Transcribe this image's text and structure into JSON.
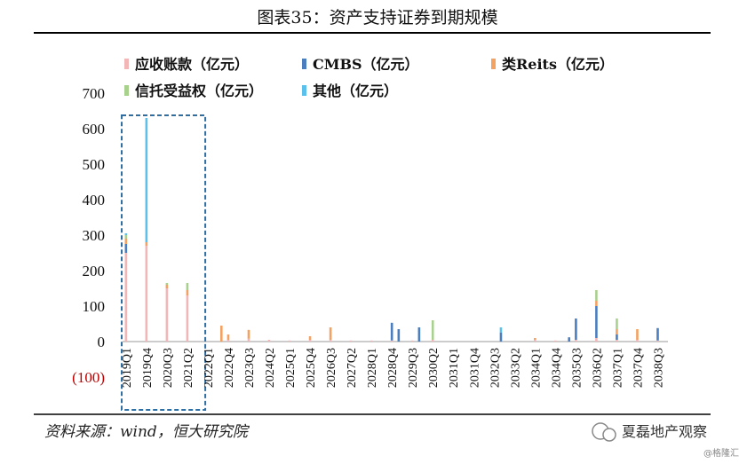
{
  "figure": {
    "title": "图表35：资产支持证券到期规模",
    "source": "资料来源：wind，恒大研究院",
    "watermark": "夏磊地产观察",
    "watermark_sub": "@格隆汇"
  },
  "chart_data": {
    "type": "bar",
    "stacked": true,
    "ylim": [
      -100,
      700
    ],
    "yticks": [
      700,
      600,
      500,
      400,
      300,
      200,
      100,
      0,
      -100
    ],
    "ytick_labels": [
      "700",
      "600",
      "500",
      "400",
      "300",
      "200",
      "100",
      "0",
      "(100)"
    ],
    "xtick_labels": [
      "2019Q1",
      "2019Q4",
      "2020Q3",
      "2021Q2",
      "2022Q1",
      "2022Q4",
      "2023Q3",
      "2024Q2",
      "2025Q1",
      "2025Q4",
      "2026Q3",
      "2027Q2",
      "2028Q1",
      "2028Q4",
      "2029Q3",
      "2030Q2",
      "2031Q1",
      "2031Q4",
      "2032Q3",
      "2033Q2",
      "2034Q1",
      "2034Q4",
      "2035Q3",
      "2036Q2",
      "2037Q1",
      "2037Q4",
      "2038Q3"
    ],
    "categories": [
      "2019Q1",
      "2019Q2",
      "2019Q3",
      "2019Q4",
      "2020Q1",
      "2020Q2",
      "2020Q3",
      "2020Q4",
      "2021Q1",
      "2021Q2",
      "2021Q3",
      "2021Q4",
      "2022Q1",
      "2022Q2",
      "2022Q3",
      "2022Q4",
      "2023Q1",
      "2023Q2",
      "2023Q3",
      "2023Q4",
      "2024Q1",
      "2024Q2",
      "2024Q3",
      "2024Q4",
      "2025Q1",
      "2025Q2",
      "2025Q3",
      "2025Q4",
      "2026Q1",
      "2026Q2",
      "2026Q3",
      "2026Q4",
      "2027Q1",
      "2027Q2",
      "2027Q3",
      "2027Q4",
      "2028Q1",
      "2028Q2",
      "2028Q3",
      "2028Q4",
      "2029Q1",
      "2029Q2",
      "2029Q3",
      "2029Q4",
      "2030Q1",
      "2030Q2",
      "2030Q3",
      "2030Q4",
      "2031Q1",
      "2031Q2",
      "2031Q3",
      "2031Q4",
      "2032Q1",
      "2032Q2",
      "2032Q3",
      "2032Q4",
      "2033Q1",
      "2033Q2",
      "2033Q3",
      "2033Q4",
      "2034Q1",
      "2034Q2",
      "2034Q3",
      "2034Q4",
      "2035Q1",
      "2035Q2",
      "2035Q3",
      "2035Q4",
      "2036Q1",
      "2036Q2",
      "2036Q3",
      "2036Q4",
      "2037Q1",
      "2037Q2",
      "2037Q3",
      "2037Q4",
      "2038Q1",
      "2038Q2",
      "2038Q3",
      "2038Q4"
    ],
    "series": [
      {
        "name": "应收账款（亿元）",
        "color": "#f2b6b6",
        "values": [
          250,
          0,
          0,
          270,
          0,
          0,
          150,
          0,
          0,
          130,
          0,
          0,
          0,
          0,
          0,
          5,
          0,
          0,
          8,
          0,
          0,
          5,
          0,
          0,
          3,
          0,
          0,
          5,
          0,
          0,
          5,
          0,
          0,
          3,
          0,
          0,
          3,
          0,
          0,
          3,
          0,
          0,
          3,
          0,
          0,
          5,
          0,
          0,
          0,
          0,
          0,
          0,
          0,
          0,
          0,
          0,
          0,
          0,
          0,
          0,
          5,
          0,
          0,
          3,
          0,
          0,
          5,
          0,
          0,
          10,
          0,
          0,
          5,
          0,
          0,
          5,
          0,
          0,
          3,
          0
        ]
      },
      {
        "name": "CMBS（亿元）",
        "color": "#4a7ebf",
        "values": [
          25,
          0,
          0,
          0,
          0,
          0,
          0,
          0,
          0,
          0,
          0,
          0,
          0,
          0,
          0,
          0,
          0,
          0,
          0,
          0,
          0,
          0,
          0,
          0,
          0,
          0,
          0,
          0,
          0,
          0,
          0,
          0,
          0,
          0,
          0,
          0,
          0,
          0,
          0,
          50,
          35,
          0,
          0,
          40,
          0,
          0,
          0,
          0,
          0,
          0,
          0,
          0,
          0,
          0,
          0,
          25,
          0,
          0,
          0,
          0,
          0,
          0,
          0,
          0,
          0,
          12,
          60,
          0,
          0,
          90,
          0,
          0,
          15,
          0,
          0,
          0,
          0,
          0,
          35,
          0
        ]
      },
      {
        "name": "类Reits（亿元）",
        "color": "#f4a261",
        "values": [
          15,
          0,
          0,
          10,
          0,
          0,
          10,
          0,
          0,
          15,
          0,
          0,
          0,
          0,
          45,
          15,
          0,
          0,
          25,
          0,
          0,
          0,
          0,
          0,
          0,
          0,
          0,
          10,
          0,
          0,
          35,
          0,
          0,
          0,
          0,
          0,
          0,
          0,
          0,
          0,
          0,
          0,
          0,
          0,
          0,
          0,
          0,
          0,
          0,
          0,
          0,
          0,
          0,
          0,
          0,
          0,
          0,
          0,
          0,
          0,
          5,
          0,
          0,
          0,
          0,
          0,
          0,
          0,
          0,
          15,
          0,
          0,
          15,
          0,
          0,
          30,
          0,
          0,
          0,
          0
        ]
      },
      {
        "name": "信托受益权（亿元）",
        "color": "#a9d18e",
        "values": [
          10,
          0,
          0,
          0,
          0,
          0,
          5,
          0,
          0,
          20,
          0,
          0,
          0,
          0,
          0,
          0,
          0,
          0,
          0,
          0,
          0,
          0,
          0,
          0,
          0,
          0,
          0,
          0,
          0,
          0,
          0,
          0,
          0,
          0,
          0,
          0,
          0,
          0,
          0,
          0,
          0,
          0,
          0,
          0,
          0,
          55,
          0,
          0,
          0,
          0,
          0,
          0,
          0,
          0,
          0,
          0,
          0,
          0,
          0,
          0,
          0,
          0,
          0,
          0,
          0,
          0,
          0,
          0,
          0,
          30,
          0,
          0,
          30,
          0,
          0,
          0,
          0,
          0,
          0,
          0
        ]
      },
      {
        "name": "其他（亿元）",
        "color": "#5bc0eb",
        "values": [
          5,
          0,
          0,
          350,
          0,
          0,
          0,
          0,
          0,
          0,
          0,
          0,
          0,
          0,
          0,
          0,
          0,
          0,
          0,
          0,
          0,
          0,
          0,
          0,
          0,
          0,
          0,
          0,
          0,
          0,
          0,
          0,
          0,
          0,
          0,
          0,
          0,
          0,
          0,
          0,
          0,
          0,
          0,
          0,
          0,
          0,
          0,
          0,
          0,
          0,
          0,
          0,
          0,
          0,
          0,
          15,
          0,
          0,
          0,
          0,
          0,
          0,
          0,
          0,
          0,
          0,
          0,
          0,
          0,
          0,
          0,
          0,
          0,
          0,
          0,
          0,
          0,
          0,
          0,
          0
        ]
      }
    ],
    "legend_placement": "top",
    "highlight_box": {
      "from": "2019Q1",
      "to": "2021Q4"
    }
  }
}
